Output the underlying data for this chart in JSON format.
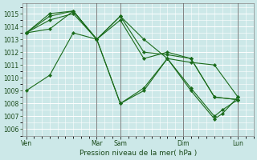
{
  "background_color": "#cce8e8",
  "grid_color": "#b0d0d0",
  "line_color": "#1a6b1a",
  "xlabel": "Pression niveau de la mer( hPa )",
  "ylim": [
    1005.5,
    1015.8
  ],
  "yticks": [
    1006,
    1007,
    1008,
    1009,
    1010,
    1011,
    1012,
    1013,
    1014,
    1015
  ],
  "xtick_labels": [
    "Ven",
    "Mar",
    "Sam",
    "Dim",
    "Lun"
  ],
  "xtick_positions": [
    0,
    9,
    12,
    20,
    27
  ],
  "vline_positions": [
    0,
    9,
    12,
    20,
    27
  ],
  "xlim": [
    -0.5,
    29
  ],
  "series": [
    {
      "x": [
        0,
        3,
        6,
        9,
        12,
        15,
        18,
        21,
        24,
        27
      ],
      "y": [
        1009.0,
        1010.2,
        1013.5,
        1013.0,
        1014.8,
        1013.0,
        1011.5,
        1011.2,
        1011.0,
        1008.5
      ]
    },
    {
      "x": [
        0,
        3,
        6,
        9,
        12,
        15,
        18,
        21,
        24,
        27
      ],
      "y": [
        1013.5,
        1014.5,
        1015.0,
        1013.0,
        1014.8,
        1012.0,
        1011.8,
        1011.5,
        1008.5,
        1008.3
      ]
    },
    {
      "x": [
        0,
        3,
        6,
        9,
        12,
        15,
        18,
        21,
        24,
        27
      ],
      "y": [
        1013.5,
        1013.8,
        1015.2,
        1013.0,
        1014.5,
        1011.5,
        1012.0,
        1011.5,
        1008.5,
        1008.3
      ]
    },
    {
      "x": [
        0,
        3,
        6,
        9,
        12,
        15,
        18,
        21,
        24,
        25,
        27
      ],
      "y": [
        1013.5,
        1015.0,
        1015.2,
        1013.0,
        1008.0,
        1009.2,
        1011.5,
        1009.0,
        1006.8,
        1007.2,
        1008.5
      ]
    },
    {
      "x": [
        0,
        3,
        6,
        9,
        12,
        15,
        18,
        21,
        24,
        25,
        27
      ],
      "y": [
        1013.5,
        1014.8,
        1015.2,
        1013.0,
        1008.0,
        1009.0,
        1011.5,
        1009.2,
        1007.0,
        1007.5,
        1008.3
      ]
    }
  ]
}
